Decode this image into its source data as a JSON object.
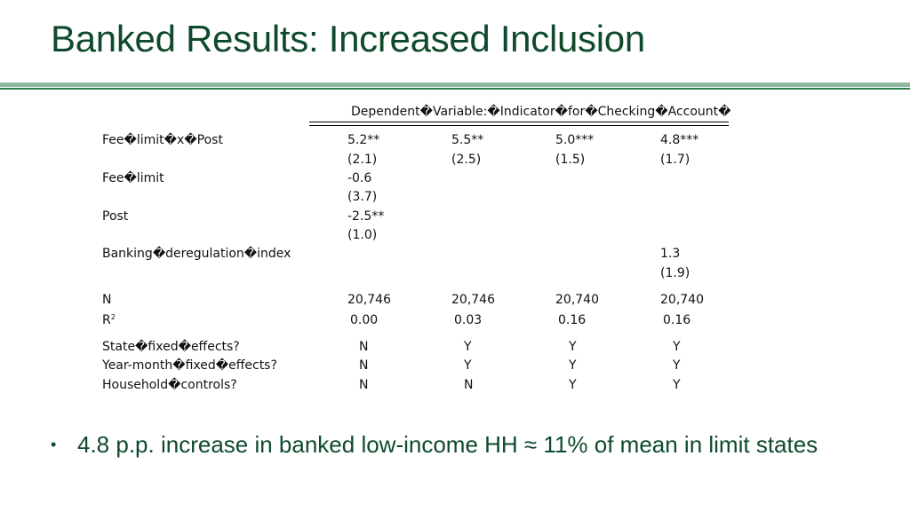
{
  "title": "Banked Results: Increased Inclusion",
  "table": {
    "header": "Dependent�Variable:�Indicator�for�Checking�Account�",
    "rows": [
      {
        "label": "Fee�limit�x�Post",
        "values": [
          "5.2**",
          "5.5**",
          "5.0***",
          "4.8***"
        ],
        "se": [
          "(2.1)",
          "(2.5)",
          "(1.5)",
          "(1.7)"
        ]
      },
      {
        "label": "Fee�limit",
        "values": [
          "-0.6"
        ],
        "se": [
          "(3.7)"
        ]
      },
      {
        "label": "Post",
        "values": [
          "-2.5**"
        ],
        "se": [
          "(1.0)"
        ]
      },
      {
        "label": "Banking�deregulation�index",
        "value4": "1.3",
        "se4": "(1.9)"
      }
    ],
    "n_label": "N",
    "n_values": [
      "20,746",
      "20,746",
      "20,740",
      "20,740"
    ],
    "r2_label": "R",
    "r2_sup": "2",
    "r2_values": [
      "0.00",
      "0.03",
      "0.16",
      "0.16"
    ],
    "controls": [
      {
        "label": "State�fixed�effects?",
        "values": [
          "N",
          "Y",
          "Y",
          "Y"
        ]
      },
      {
        "label": "Year-month�fixed�effects?",
        "values": [
          "N",
          "Y",
          "Y",
          "Y"
        ]
      },
      {
        "label": "Household�controls?",
        "values": [
          "N",
          "N",
          "Y",
          "Y"
        ]
      }
    ]
  },
  "bullets": [
    {
      "marker": "•",
      "text": "4.8 p.p. increase in banked low-income HH ≈ 11% of mean in limit states"
    }
  ],
  "colors": {
    "title": "#0f4a2c",
    "rule_light": "#8fb89f",
    "rule_dark": "#2e7d4f"
  }
}
